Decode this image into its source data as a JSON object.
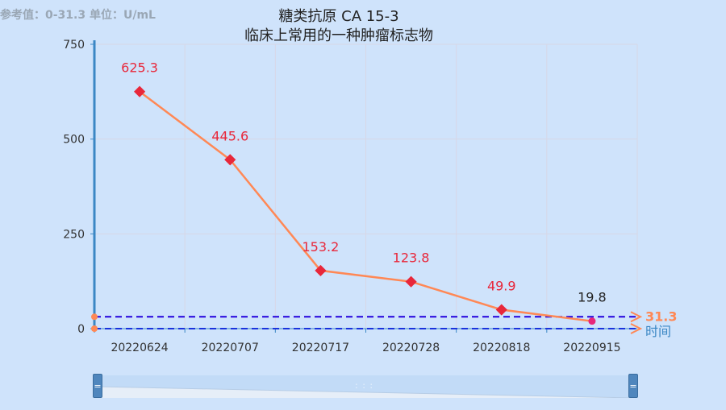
{
  "reference_text": "参考值：0-31.3  单位：U/mL",
  "chart_data": {
    "type": "line",
    "title": "糖类抗原 CA 15-3",
    "subtitle": "临床上常用的一种肿瘤标志物",
    "categories": [
      "20220624",
      "20220707",
      "20220717",
      "20220728",
      "20220818",
      "20220915"
    ],
    "series": [
      {
        "values": [
          625.3,
          445.6,
          153.2,
          123.8,
          49.9,
          19.8
        ],
        "labels": [
          "625.3",
          "445.6",
          "153.2",
          "123.8",
          "49.9",
          "19.8"
        ],
        "color": "#ff8855",
        "abnormal_color": "#e8273a",
        "normal_color": "#e8277a"
      }
    ],
    "ylim": [
      0,
      750
    ],
    "yticks": [
      0,
      250,
      500,
      750
    ],
    "reference_lines": [
      {
        "value": 31.3,
        "label": "31.3",
        "color": "#2200dd"
      },
      {
        "value": 0,
        "label": "时间",
        "color": "#1a33dd"
      }
    ],
    "grid": true
  },
  "colors": {
    "background": "#cfe3fb",
    "axis": "#3b87c4",
    "grid": "#d7d7e6",
    "label_normal": "#222222",
    "ref_label": "#ff8855",
    "time_label": "#3b87c4"
  }
}
